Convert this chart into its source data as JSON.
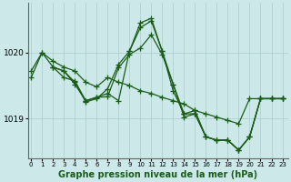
{
  "background_color": "#cce8e8",
  "plot_bg_color": "#cce8e8",
  "line_color": "#1a5c1a",
  "marker": "+",
  "marker_size": 4,
  "xlabel": "Graphe pression niveau de la mer (hPa)",
  "xlabel_fontsize": 7,
  "xticks": [
    0,
    1,
    2,
    3,
    4,
    5,
    6,
    7,
    8,
    9,
    10,
    11,
    12,
    13,
    14,
    15,
    16,
    17,
    18,
    19,
    20,
    21,
    22,
    23
  ],
  "yticks": [
    1019.0,
    1020.0
  ],
  "ylim": [
    1018.4,
    1020.75
  ],
  "xlim": [
    -0.3,
    23.5
  ],
  "grid_color": "#aacccc",
  "series": [
    {
      "x": [
        0,
        1,
        2,
        3,
        4,
        5,
        6,
        7,
        8,
        9,
        10,
        11,
        12,
        13,
        14,
        15,
        16,
        17,
        18,
        19,
        20,
        21,
        22,
        23
      ],
      "y": [
        1019.72,
        1020.0,
        1019.87,
        1019.78,
        1019.72,
        1019.55,
        1019.48,
        1019.62,
        1019.55,
        1019.5,
        1019.42,
        1019.38,
        1019.32,
        1019.27,
        1019.22,
        1019.12,
        1019.07,
        1019.02,
        1018.97,
        1018.92,
        1019.3,
        1019.3,
        1019.3,
        1019.3
      ]
    },
    {
      "x": [
        0,
        1,
        2,
        3,
        4,
        5,
        6,
        7,
        8,
        9,
        10,
        11,
        12,
        13,
        14,
        15,
        16,
        17,
        18,
        19,
        20,
        21,
        22,
        23
      ],
      "y": [
        1019.62,
        1020.0,
        1019.78,
        1019.72,
        1019.55,
        1019.25,
        1019.3,
        1019.45,
        1019.82,
        1020.02,
        1020.45,
        1020.52,
        1020.02,
        1019.42,
        1019.07,
        1019.07,
        1018.72,
        1018.67,
        1018.67,
        1018.52,
        1018.72,
        1019.3,
        1019.3,
        1019.3
      ]
    },
    {
      "x": [
        2,
        3,
        4,
        5,
        6,
        7,
        8,
        9,
        10,
        11,
        12,
        13,
        14,
        15,
        16,
        17,
        18,
        19,
        20,
        21,
        22,
        23
      ],
      "y": [
        1019.78,
        1019.72,
        1019.52,
        1019.27,
        1019.32,
        1019.38,
        1019.27,
        1020.02,
        1020.38,
        1020.48,
        1020.02,
        1019.52,
        1019.07,
        1019.12,
        1018.72,
        1018.67,
        1018.67,
        1018.52,
        1018.72,
        1019.3,
        1019.3,
        1019.3
      ]
    },
    {
      "x": [
        2,
        3,
        4,
        5,
        6,
        7,
        8,
        9,
        10,
        11,
        12,
        13,
        14,
        15,
        16,
        17,
        18,
        19,
        20,
        21,
        22,
        23
      ],
      "y": [
        1019.78,
        1019.62,
        1019.57,
        1019.27,
        1019.32,
        1019.33,
        1019.77,
        1019.97,
        1020.07,
        1020.27,
        1019.97,
        1019.52,
        1019.02,
        1019.07,
        1018.72,
        1018.67,
        1018.67,
        1018.52,
        1018.72,
        1019.3,
        1019.3,
        1019.3
      ]
    }
  ]
}
